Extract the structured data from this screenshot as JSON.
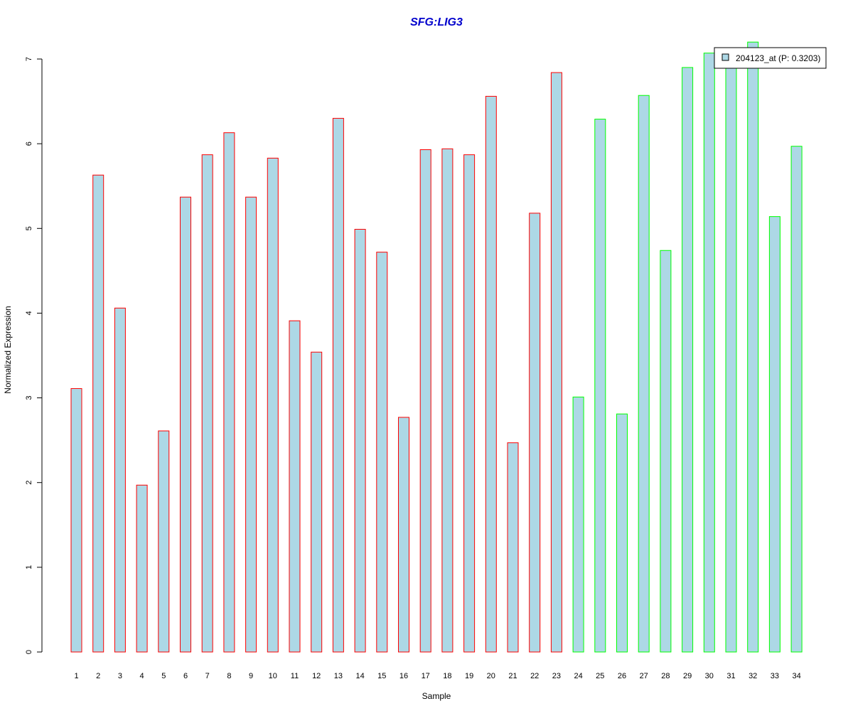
{
  "chart_data": {
    "type": "bar",
    "title": "SFG:LIG3",
    "xlabel": "Sample",
    "ylabel": "Normalized Expression",
    "categories": [
      "1",
      "2",
      "3",
      "4",
      "5",
      "6",
      "7",
      "8",
      "9",
      "10",
      "11",
      "12",
      "13",
      "14",
      "15",
      "16",
      "17",
      "18",
      "19",
      "20",
      "21",
      "22",
      "23",
      "24",
      "25",
      "26",
      "27",
      "28",
      "29",
      "30",
      "31",
      "32",
      "33",
      "34"
    ],
    "series": [
      {
        "name": "204123_at (P: 0.3203)",
        "values": [
          3.11,
          5.63,
          4.06,
          1.97,
          2.61,
          5.37,
          5.87,
          6.13,
          5.37,
          5.83,
          3.91,
          3.54,
          6.3,
          4.99,
          4.72,
          2.77,
          5.93,
          5.94,
          5.87,
          6.56,
          2.47,
          5.18,
          6.84,
          3.01,
          6.29,
          2.81,
          6.57,
          4.74,
          6.9,
          7.07,
          6.93,
          7.2,
          5.14,
          5.97
        ]
      }
    ],
    "groups": [
      {
        "samples": [
          1,
          23
        ],
        "border_color": "#ff0000"
      },
      {
        "samples": [
          24,
          34
        ],
        "border_color": "#00ff00"
      }
    ],
    "yticks": [
      0,
      1,
      2,
      3,
      4,
      5,
      6,
      7
    ],
    "ylim": [
      0,
      7.3
    ],
    "grid": false,
    "legend_position": "top-right",
    "colors": {
      "bar_fill": "#add8e6",
      "title": "#0000cc",
      "axis": "#000000"
    }
  }
}
